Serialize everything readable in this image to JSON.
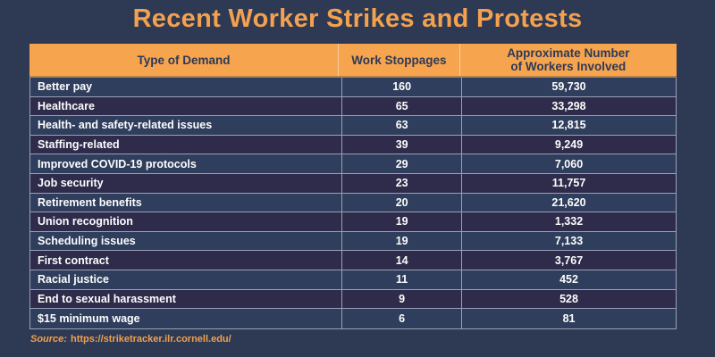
{
  "page": {
    "background_color": "#2e3a54",
    "source_label": "Source:",
    "source_url": "https://striketracker.ilr.cornell.edu/"
  },
  "colors": {
    "title_orange": "#f3a14e",
    "header_bg": "#f7a44f",
    "header_text": "#2c3a58",
    "header_underline": "#b5834e",
    "row_light": "#2f3e5c",
    "row_dark": "#2e2b4b",
    "grid_line": "#9aa1b6",
    "cell_text": "#fdfdfd"
  },
  "chart_data": {
    "type": "table",
    "title": "Recent Worker Strikes and Protests",
    "columns": [
      "Type of Demand",
      "Work Stoppages",
      "Approximate Number\nof Workers Involved"
    ],
    "rows": [
      {
        "demand": "Better pay",
        "stoppages": 160,
        "workers": "59,730"
      },
      {
        "demand": "Healthcare",
        "stoppages": 65,
        "workers": "33,298"
      },
      {
        "demand": "Health- and safety-related issues",
        "stoppages": 63,
        "workers": "12,815"
      },
      {
        "demand": "Staffing-related",
        "stoppages": 39,
        "workers": "9,249"
      },
      {
        "demand": "Improved COVID-19 protocols",
        "stoppages": 29,
        "workers": "7,060"
      },
      {
        "demand": "Job security",
        "stoppages": 23,
        "workers": "11,757"
      },
      {
        "demand": "Retirement benefits",
        "stoppages": 20,
        "workers": "21,620"
      },
      {
        "demand": "Union recognition",
        "stoppages": 19,
        "workers": "1,332"
      },
      {
        "demand": "Scheduling issues",
        "stoppages": 19,
        "workers": "7,133"
      },
      {
        "demand": "First contract",
        "stoppages": 14,
        "workers": "3,767"
      },
      {
        "demand": "Racial justice",
        "stoppages": 11,
        "workers": "452"
      },
      {
        "demand": "End to sexual harassment",
        "stoppages": 9,
        "workers": "528"
      },
      {
        "demand": "$15 minimum wage",
        "stoppages": 6,
        "workers": "81"
      }
    ]
  }
}
